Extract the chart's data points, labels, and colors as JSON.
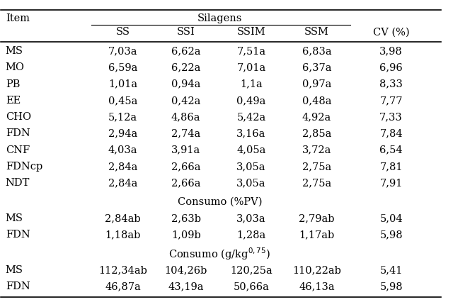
{
  "subheader": [
    "",
    "SS",
    "SSI",
    "SSIM",
    "SSM",
    "CV (%)"
  ],
  "rows": [
    [
      "MS",
      "7,03a",
      "6,62a",
      "7,51a",
      "6,83a",
      "3,98"
    ],
    [
      "MO",
      "6,59a",
      "6,22a",
      "7,01a",
      "6,37a",
      "6,96"
    ],
    [
      "PB",
      "1,01a",
      "0,94a",
      "1,1a",
      "0,97a",
      "8,33"
    ],
    [
      "EE",
      "0,45a",
      "0,42a",
      "0,49a",
      "0,48a",
      "7,77"
    ],
    [
      "CHO",
      "5,12a",
      "4,86a",
      "5,42a",
      "4,92a",
      "7,33"
    ],
    [
      "FDN",
      "2,94a",
      "2,74a",
      "3,16a",
      "2,85a",
      "7,84"
    ],
    [
      "CNF",
      "4,03a",
      "3,91a",
      "4,05a",
      "3,72a",
      "6,54"
    ],
    [
      "FDNcp",
      "2,84a",
      "2,66a",
      "3,05a",
      "2,75a",
      "7,81"
    ],
    [
      "NDT",
      "2,84a",
      "2,66a",
      "3,05a",
      "2,75a",
      "7,91"
    ]
  ],
  "section1_label": "Consumo (%PV)",
  "rows_section1": [
    [
      "MS",
      "2,84ab",
      "2,63b",
      "3,03a",
      "2,79ab",
      "5,04"
    ],
    [
      "FDN",
      "1,18ab",
      "1,09b",
      "1,28a",
      "1,17ab",
      "5,98"
    ]
  ],
  "section2_superscript": "0,75",
  "rows_section2": [
    [
      "MS",
      "112,34ab",
      "104,26b",
      "120,25a",
      "110,22ab",
      "5,41"
    ],
    [
      "FDN",
      "46,87a",
      "43,19a",
      "50,66a",
      "46,13a",
      "5,98"
    ]
  ],
  "bg_color": "#ffffff",
  "text_color": "#000000",
  "font_size": 10.5
}
